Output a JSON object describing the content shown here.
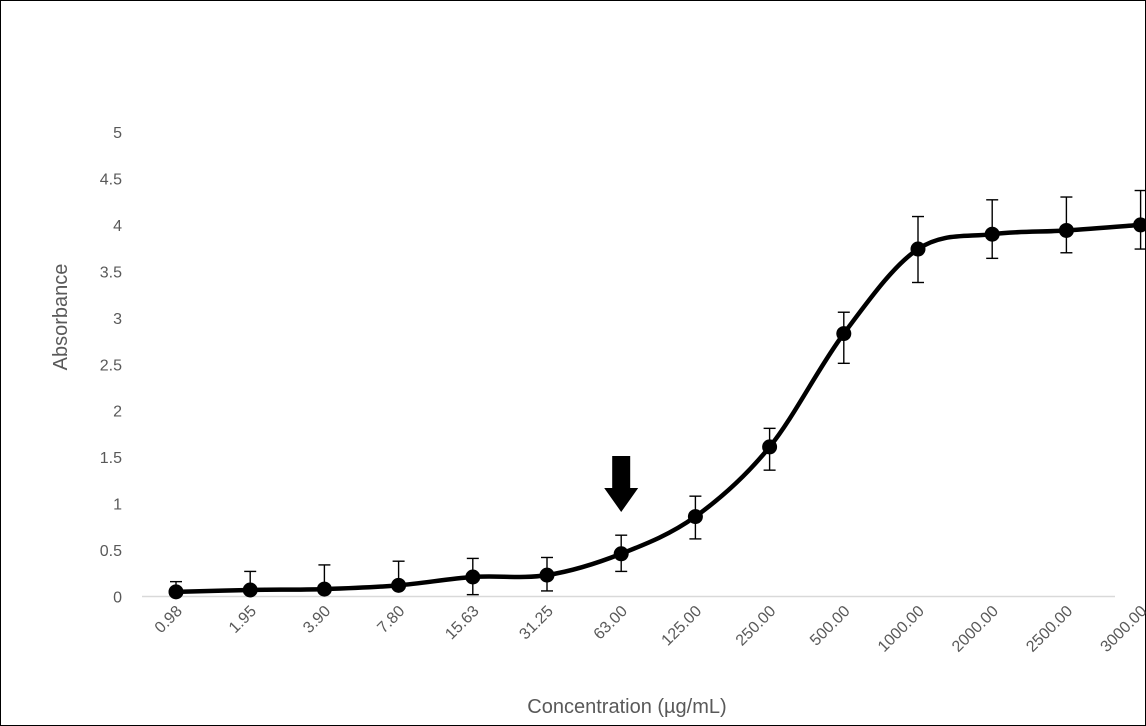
{
  "chart_data": {
    "type": "line",
    "title": "",
    "xlabel": "Concentration (µg/mL)",
    "ylabel": "Absorbance",
    "categories": [
      "0.98",
      "1.95",
      "3.90",
      "7.80",
      "15.63",
      "31.25",
      "63.00",
      "125.00",
      "250.00",
      "500.00",
      "1000.00",
      "2000.00",
      "2500.00",
      "3000.00"
    ],
    "series": [
      {
        "values": [
          0.05,
          0.07,
          0.08,
          0.12,
          0.21,
          0.23,
          0.46,
          0.86,
          1.61,
          2.83,
          3.74,
          3.9,
          3.94,
          4.0
        ],
        "error_plus": [
          0.11,
          0.2,
          0.26,
          0.26,
          0.2,
          0.19,
          0.2,
          0.22,
          0.2,
          0.23,
          0.35,
          0.37,
          0.36,
          0.37
        ],
        "error_minus": [
          0.0,
          0.0,
          0.0,
          0.0,
          0.19,
          0.17,
          0.19,
          0.24,
          0.25,
          0.32,
          0.36,
          0.26,
          0.24,
          0.26
        ],
        "color": "#000000"
      }
    ],
    "ylim": [
      0,
      5
    ],
    "yticks": [
      "0",
      "0.5",
      "1",
      "1.5",
      "2",
      "2.5",
      "3",
      "3.5",
      "4",
      "4.5",
      "5"
    ],
    "grid": false,
    "legend": "none",
    "smooth": true,
    "annotation": {
      "type": "down-arrow",
      "category": "63.00",
      "color": "#000000"
    },
    "colors": {
      "line": "#000000",
      "axis": "#D9D9D9",
      "text": "#595959"
    }
  }
}
